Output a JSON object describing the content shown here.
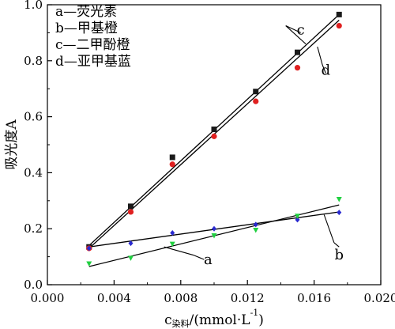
{
  "chart_data": {
    "type": "scatter",
    "xlabel": {
      "main": "c",
      "subscript": "染料",
      "unit_prefix": "/(mmol·L",
      "unit_exp": "-1",
      "unit_suffix": ")"
    },
    "ylabel": "吸光度A",
    "xlim": [
      0.0,
      0.02
    ],
    "ylim": [
      0.0,
      1.0
    ],
    "xticks": [
      "0.000",
      "0.004",
      "0.008",
      "0.012",
      "0.016",
      "0.020"
    ],
    "yticks": [
      "0.0",
      "0.2",
      "0.4",
      "0.6",
      "0.8",
      "1.0"
    ],
    "legend_position": "top-left",
    "legend": [
      {
        "key": "a",
        "text": "a—荧光素"
      },
      {
        "key": "b",
        "text": "b—甲基橙"
      },
      {
        "key": "c",
        "text": "c—二甲酚橙"
      },
      {
        "key": "d",
        "text": "d—亚甲基蓝"
      }
    ],
    "series": [
      {
        "name": "c",
        "color": "#1a1a1a",
        "marker": "square",
        "x": [
          0.0025,
          0.005,
          0.0075,
          0.01,
          0.0125,
          0.015,
          0.0175
        ],
        "y": [
          0.135,
          0.28,
          0.455,
          0.555,
          0.69,
          0.83,
          0.965
        ],
        "fit": {
          "x": [
            0.0025,
            0.0175
          ],
          "y": [
            0.14,
            0.965
          ]
        }
      },
      {
        "name": "d",
        "color": "#e02020",
        "marker": "circle",
        "x": [
          0.0025,
          0.005,
          0.0075,
          0.01,
          0.0125,
          0.015,
          0.0175
        ],
        "y": [
          0.13,
          0.26,
          0.43,
          0.53,
          0.655,
          0.775,
          0.925
        ],
        "fit": {
          "x": [
            0.0025,
            0.0175
          ],
          "y": [
            0.13,
            0.945
          ]
        }
      },
      {
        "name": "b",
        "color": "#2a2ad0",
        "marker": "diamond",
        "x": [
          0.0025,
          0.005,
          0.0075,
          0.01,
          0.0125,
          0.015,
          0.0175
        ],
        "y": [
          0.13,
          0.148,
          0.185,
          0.2,
          0.215,
          0.232,
          0.258
        ],
        "fit": {
          "x": [
            0.0025,
            0.0175
          ],
          "y": [
            0.135,
            0.26
          ]
        }
      },
      {
        "name": "a",
        "color": "#20d040",
        "marker": "triangle-down",
        "x": [
          0.0025,
          0.005,
          0.0075,
          0.01,
          0.0125,
          0.015,
          0.0175
        ],
        "y": [
          0.075,
          0.095,
          0.145,
          0.175,
          0.195,
          0.245,
          0.305
        ],
        "fit": {
          "x": [
            0.0025,
            0.0175
          ],
          "y": [
            0.065,
            0.285
          ]
        }
      }
    ],
    "curve_labels": [
      {
        "text": "c",
        "x": 0.0152,
        "y": 0.9,
        "lx": 0.0143,
        "ly": 0.925,
        "tx": 0.0155,
        "ty": 0.86
      },
      {
        "text": "d",
        "x": 0.0167,
        "y": 0.755,
        "lx": 0.0165,
        "ly": 0.785,
        "tx": 0.0162,
        "ty": 0.85
      },
      {
        "text": "b",
        "x": 0.0175,
        "y": 0.135,
        "lx": 0.0172,
        "ly": 0.15,
        "tx": 0.0166,
        "ty": 0.25
      },
      {
        "text": "a",
        "x": 0.0094,
        "y": 0.09,
        "lx": 0.0088,
        "ly": 0.105,
        "tx": 0.007,
        "ty": 0.135
      }
    ]
  }
}
